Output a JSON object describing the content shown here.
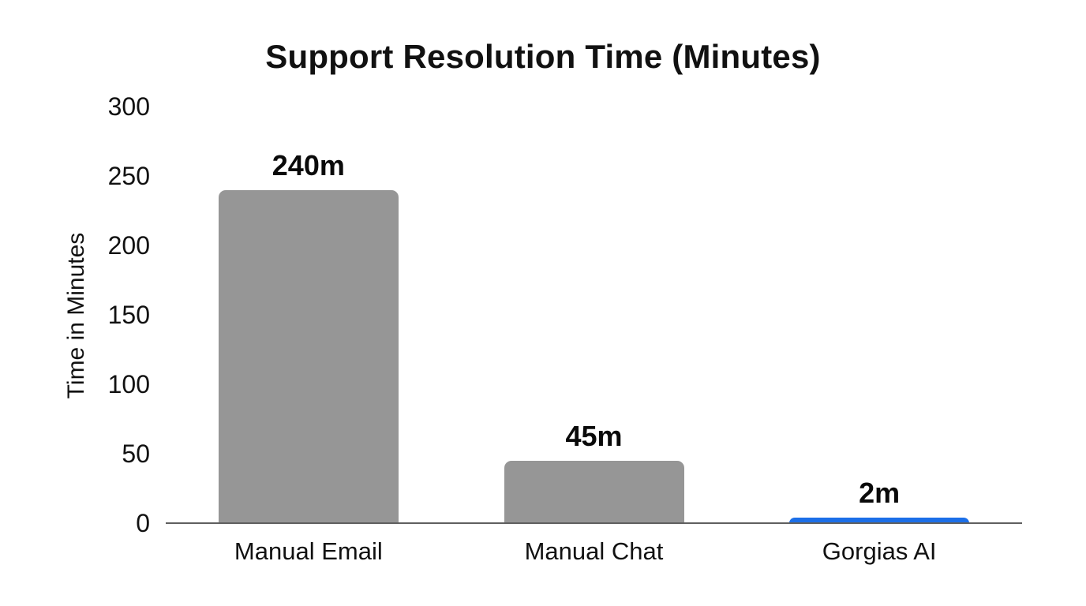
{
  "chart_data": {
    "type": "bar",
    "title": "Support Resolution Time (Minutes)",
    "categories": [
      "Manual Email",
      "Manual Chat",
      "Gorgias AI"
    ],
    "values": [
      240,
      45,
      2
    ],
    "value_labels": [
      "240m",
      "45m",
      "2m"
    ],
    "xlabel": "",
    "ylabel": "Time in Minutes",
    "ylim": [
      0,
      300
    ],
    "yticks": [
      0,
      50,
      100,
      150,
      200,
      250,
      300
    ],
    "grid": false,
    "legend": "none",
    "bar_colors": [
      "#969696",
      "#969696",
      "#1c6fe8"
    ]
  },
  "colors": {
    "bar_gray": "#969696",
    "bar_blue": "#1c6fe8",
    "axis_line": "#5f5f5f",
    "text": "#111111",
    "background": "#ffffff"
  }
}
